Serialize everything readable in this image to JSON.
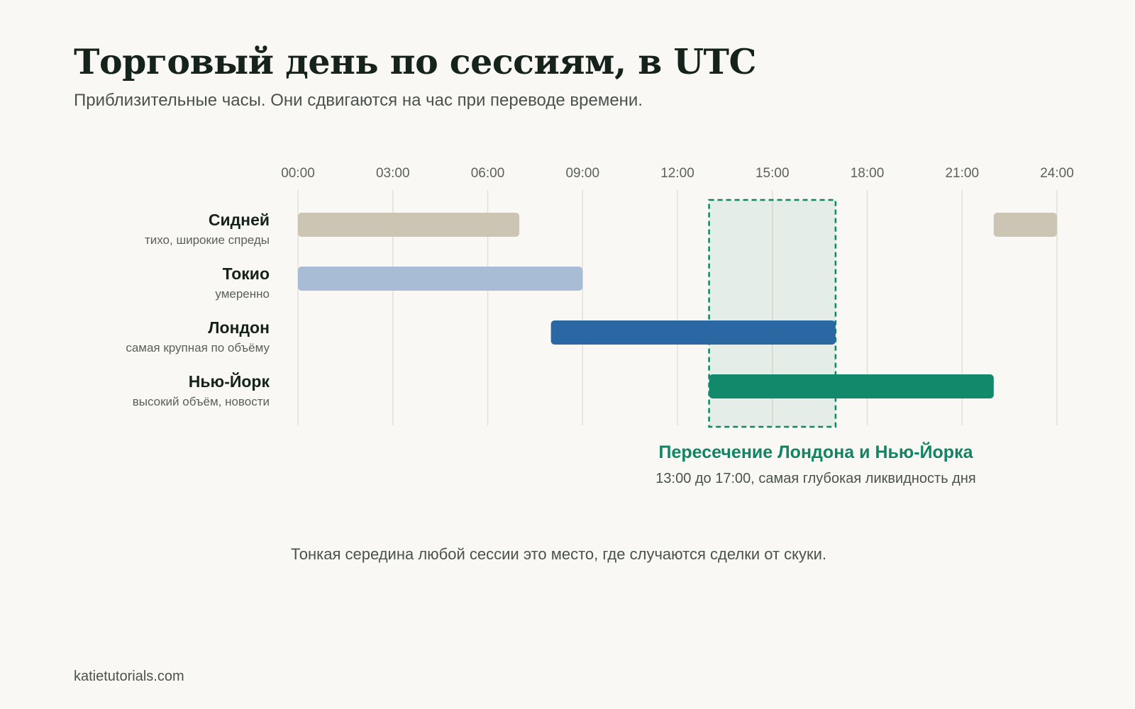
{
  "header": {
    "title": "Торговый день по сессиям, в UTC",
    "subtitle": "Приблизительные часы. Они сдвигаются на час при переводе времени."
  },
  "chart_data": {
    "type": "gantt",
    "x_unit": "hours UTC",
    "xlim": [
      0,
      24
    ],
    "ticks": [
      "00:00",
      "03:00",
      "06:00",
      "09:00",
      "12:00",
      "15:00",
      "18:00",
      "21:00",
      "24:00"
    ],
    "tick_values": [
      0,
      3,
      6,
      9,
      12,
      15,
      18,
      21,
      24
    ],
    "grid": true,
    "sessions": [
      {
        "name": "Сидней",
        "note": "тихо, широкие спреды",
        "color": "#cdc5b3",
        "segments": [
          [
            0,
            7
          ],
          [
            22,
            24
          ]
        ]
      },
      {
        "name": "Токио",
        "note": "умеренно",
        "color": "#a9bcd6",
        "segments": [
          [
            0,
            9
          ]
        ]
      },
      {
        "name": "Лондон",
        "note": "самая крупная по объёму",
        "color": "#2b68a3",
        "segments": [
          [
            8,
            17
          ]
        ]
      },
      {
        "name": "Нью-Йорк",
        "note": "высокий объём, новости",
        "color": "#12896a",
        "segments": [
          [
            13,
            22
          ]
        ]
      }
    ],
    "overlap": {
      "range": [
        13,
        17
      ],
      "color": "#138463",
      "title": "Пересечение Лондона и Нью-Йорка",
      "subtitle": "13:00 до 17:00, самая глубокая ликвидность дня"
    }
  },
  "footnote": "Тонкая середина любой сессии это место, где случаются сделки от скуки.",
  "source": "katietutorials.com"
}
